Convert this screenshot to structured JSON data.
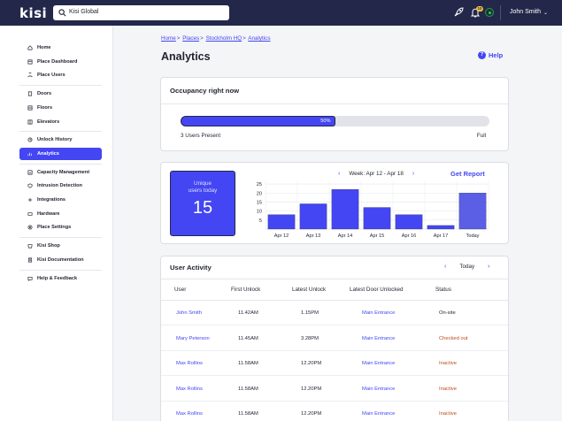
{
  "app": {
    "logo": "kisi"
  },
  "search": {
    "value": "Kisi Global"
  },
  "topbar": {
    "notification_count": "10",
    "user_name": "John Smith"
  },
  "sidebar": {
    "groups": [
      [
        {
          "label": "Home",
          "icon": "home-icon"
        },
        {
          "label": "Place Dashboard",
          "icon": "dashboard-icon"
        },
        {
          "label": "Place Users",
          "icon": "user-icon"
        }
      ],
      [
        {
          "label": "Doors",
          "icon": "door-icon"
        },
        {
          "label": "Floors",
          "icon": "floor-icon"
        },
        {
          "label": "Elevators",
          "icon": "elevator-icon"
        }
      ],
      [
        {
          "label": "Unlock History",
          "icon": "history-icon"
        },
        {
          "label": "Analytics",
          "icon": "analytics-icon",
          "active": true
        }
      ],
      [
        {
          "label": "Capacity Management",
          "icon": "capacity-icon"
        },
        {
          "label": "Intrusion Detection",
          "icon": "intrusion-icon"
        },
        {
          "label": "Integrations",
          "icon": "integrations-icon"
        },
        {
          "label": "Hardware",
          "icon": "hardware-icon"
        },
        {
          "label": "Place Settings",
          "icon": "settings-icon"
        }
      ],
      [
        {
          "label": "Kisi Shop",
          "icon": "shop-icon"
        },
        {
          "label": "Kisi Documentation",
          "icon": "docs-icon"
        }
      ],
      [
        {
          "label": "Help & Feedback",
          "icon": "help-icon"
        }
      ]
    ]
  },
  "breadcrumb": [
    "Home",
    "Places",
    "Stockholm HQ",
    "Analytics"
  ],
  "page": {
    "title": "Analytics",
    "help": "Help"
  },
  "occupancy": {
    "title": "Occupancy right now",
    "percent_label": "50%",
    "fill_fraction": 0.5,
    "present": "3 Users Present",
    "full": "Full"
  },
  "unique": {
    "label_line1": "Unique",
    "label_line2": "users today",
    "value": "15"
  },
  "week": {
    "label": "Week: Apr 12 - Apr 18",
    "get_report": "Get Report"
  },
  "chart_data": {
    "type": "bar",
    "categories": [
      "Apr 12",
      "Apr 13",
      "Apr 14",
      "Apr 15",
      "Apr 16",
      "Apr 17",
      "Today"
    ],
    "values": [
      8,
      14,
      22,
      12,
      8,
      2,
      20
    ],
    "yticks": [
      5,
      10,
      15,
      20,
      25
    ],
    "ylim": [
      0,
      27
    ],
    "bar_color": "#4346f2",
    "today_color": "#5a5fe6",
    "grid": true
  },
  "activity": {
    "title": "User Activity",
    "nav_label": "Today",
    "columns": [
      "User",
      "First Unlock",
      "Latest Unlock",
      "Latest Door Unlocked",
      "Status"
    ],
    "rows": [
      {
        "user": "John Smith",
        "first": "11.42AM",
        "latest": "1.15PM",
        "door": "Main Entrance",
        "status": "On-site",
        "kind": "ok"
      },
      {
        "user": "Mary Peterson",
        "first": "11.45AM",
        "latest": "3.28PM",
        "door": "Main Entrance",
        "status": "Checked out",
        "kind": "out"
      },
      {
        "user": "Max Rollins",
        "first": "11.58AM",
        "latest": "12.20PM",
        "door": "Main Entrance",
        "status": "Inactive",
        "kind": "in"
      },
      {
        "user": "Max Rollins",
        "first": "11.58AM",
        "latest": "12.20PM",
        "door": "Main Entrance",
        "status": "Inactive",
        "kind": "in"
      },
      {
        "user": "Max Rollins",
        "first": "11.58AM",
        "latest": "12.20PM",
        "door": "Main Entrance",
        "status": "Inactive",
        "kind": "in"
      }
    ]
  }
}
